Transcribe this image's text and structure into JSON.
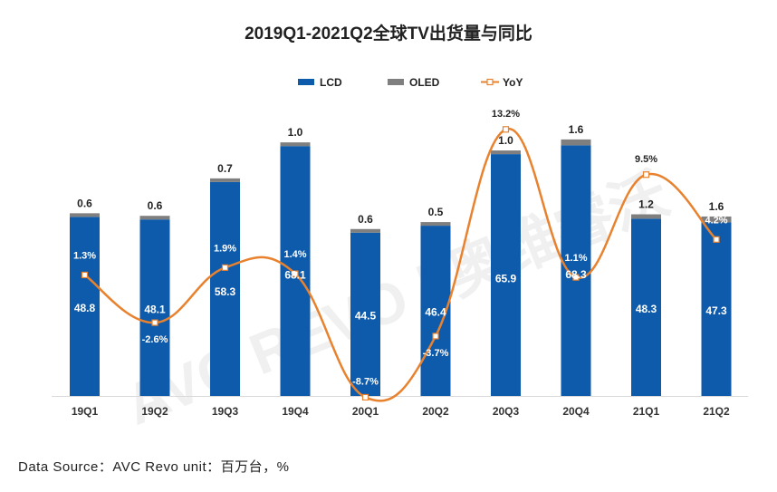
{
  "title": "2019Q1-2021Q2全球TV出货量与同比",
  "source": "Data Source：AVC Revo  unit：百万台，%",
  "watermark": "AVC REVO | 奥维睿沃",
  "colors": {
    "lcd": "#0f5bab",
    "oled": "#7f7f7f",
    "yoy": "#e8822e"
  },
  "chart_data": {
    "type": "bar",
    "stacked": true,
    "categories": [
      "19Q1",
      "19Q2",
      "19Q3",
      "19Q4",
      "20Q1",
      "20Q2",
      "20Q3",
      "20Q4",
      "21Q1",
      "21Q2"
    ],
    "series": [
      {
        "name": "LCD",
        "values": [
          48.8,
          48.1,
          58.3,
          68.1,
          44.5,
          46.4,
          65.9,
          68.3,
          48.3,
          47.3
        ]
      },
      {
        "name": "OLED",
        "values": [
          0.6,
          0.6,
          0.7,
          1.0,
          0.6,
          0.5,
          1.0,
          1.6,
          1.2,
          1.6
        ]
      }
    ],
    "line_series": {
      "name": "YoY",
      "values": [
        1.3,
        -2.6,
        1.9,
        1.4,
        -8.7,
        -3.7,
        13.2,
        1.1,
        9.5,
        4.2
      ],
      "unit": "%"
    },
    "legend_position": "top-center",
    "grid": false
  }
}
